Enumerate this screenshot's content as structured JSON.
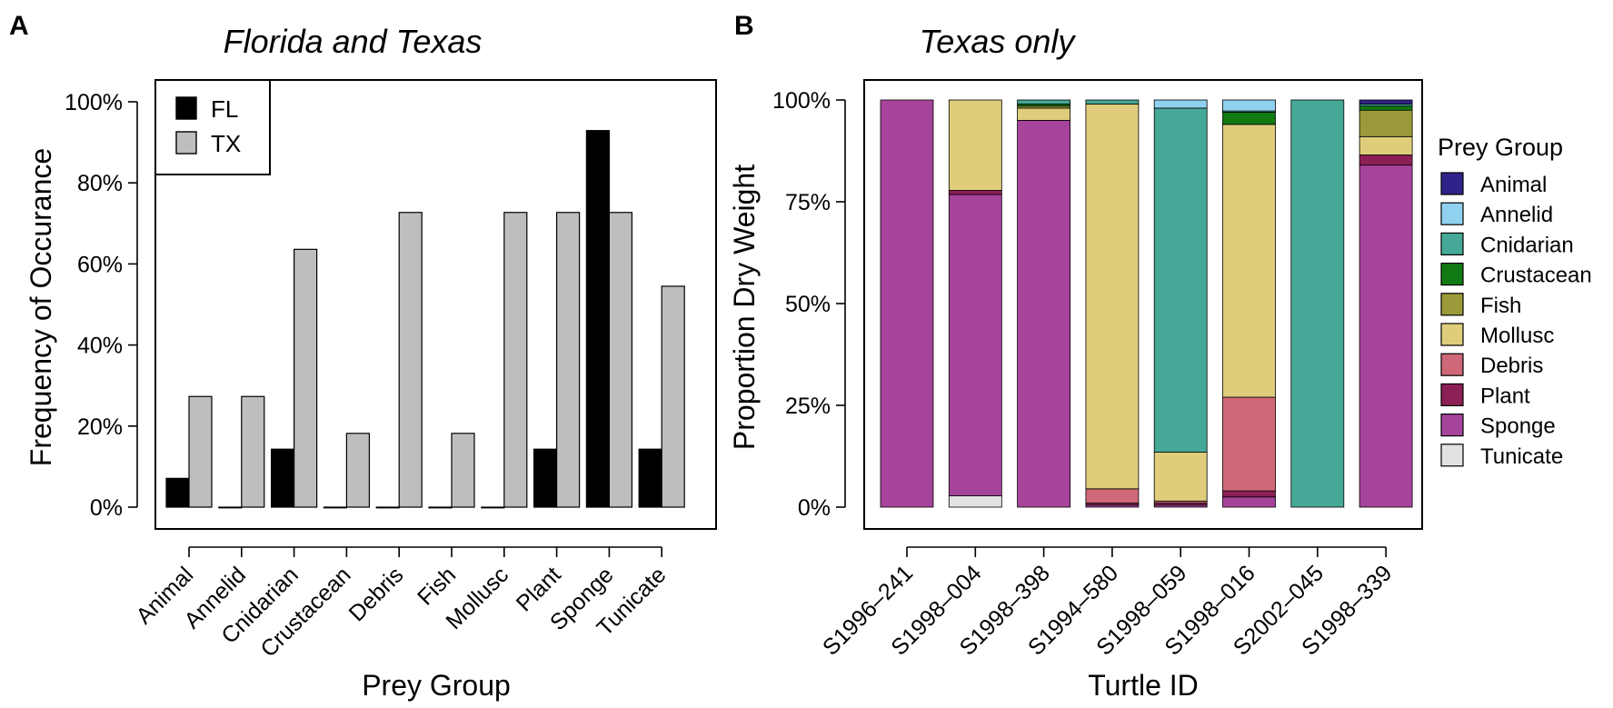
{
  "figure": {
    "panel_a_letter": "A",
    "panel_b_letter": "B"
  },
  "chart_data": [
    {
      "type": "bar",
      "subtype": "grouped",
      "title": "Florida and Texas",
      "xlabel": "Prey Group",
      "ylabel": "Frequency of Occurance",
      "ylim": [
        0,
        100
      ],
      "yticks": [
        "0%",
        "20%",
        "40%",
        "60%",
        "80%",
        "100%"
      ],
      "ytick_values": [
        0,
        20,
        40,
        60,
        80,
        100
      ],
      "categories": [
        "Animal",
        "Annelid",
        "Cnidarian",
        "Crustacean",
        "Debris",
        "Fish",
        "Mollusc",
        "Plant",
        "Sponge",
        "Tunicate"
      ],
      "series": [
        {
          "name": "FL",
          "color": "#000000",
          "values": [
            7.1,
            0,
            14.3,
            0,
            0,
            0,
            0,
            14.3,
            92.9,
            14.3
          ]
        },
        {
          "name": "TX",
          "color": "#bebebe",
          "values": [
            27.3,
            27.3,
            63.6,
            18.2,
            72.7,
            18.2,
            72.7,
            72.7,
            72.7,
            54.5
          ]
        }
      ],
      "legend": {
        "position": "top-left",
        "entries": [
          "FL",
          "TX"
        ]
      }
    },
    {
      "type": "bar",
      "subtype": "stacked-proportion",
      "title": "Texas only",
      "xlabel": "Turtle ID",
      "ylabel": "Proportion Dry Weight",
      "ylim": [
        0,
        100
      ],
      "yticks": [
        "0%",
        "25%",
        "50%",
        "75%",
        "100%"
      ],
      "ytick_values": [
        0,
        25,
        50,
        75,
        100
      ],
      "categories": [
        "S1996–241",
        "S1998–004",
        "S1998–398",
        "S1994–580",
        "S1998–059",
        "S1998–016",
        "S2002–045",
        "S1998–339"
      ],
      "legend": {
        "title": "Prey Group",
        "position": "right",
        "entries": [
          "Animal",
          "Annelid",
          "Cnidarian",
          "Crustacean",
          "Fish",
          "Mollusc",
          "Debris",
          "Plant",
          "Sponge",
          "Tunicate"
        ]
      },
      "series": [
        {
          "name": "Tunicate",
          "color": "#e2e2e2",
          "values": [
            0,
            2.8,
            0,
            0,
            0,
            0,
            0,
            0
          ]
        },
        {
          "name": "Sponge",
          "color": "#a6449b",
          "values": [
            100,
            74,
            95,
            0.5,
            0.5,
            2.5,
            0,
            84
          ]
        },
        {
          "name": "Plant",
          "color": "#8c1f56",
          "values": [
            0,
            1,
            0,
            0.5,
            0.5,
            1.5,
            0,
            2.5
          ]
        },
        {
          "name": "Debris",
          "color": "#cf6878",
          "values": [
            0,
            0,
            0,
            3.5,
            0.5,
            23,
            0,
            0
          ]
        },
        {
          "name": "Mollusc",
          "color": "#dfcd7c",
          "values": [
            0,
            22.2,
            3,
            94.5,
            12,
            67,
            0,
            4.5
          ]
        },
        {
          "name": "Fish",
          "color": "#9a9a3a",
          "values": [
            0,
            0,
            0.5,
            0,
            0,
            0,
            0,
            6.5
          ]
        },
        {
          "name": "Crustacean",
          "color": "#127a12",
          "values": [
            0,
            0,
            0.5,
            0,
            0,
            3,
            0,
            1
          ]
        },
        {
          "name": "Cnidarian",
          "color": "#46a997",
          "values": [
            0,
            0,
            1,
            1,
            84.5,
            0.3,
            100,
            0.5
          ]
        },
        {
          "name": "Annelid",
          "color": "#8fd1ef",
          "values": [
            0,
            0,
            0,
            0,
            2,
            2.7,
            0,
            0
          ]
        },
        {
          "name": "Animal",
          "color": "#2e238a",
          "values": [
            0,
            0,
            0,
            0,
            0,
            0,
            0,
            1
          ]
        }
      ]
    }
  ]
}
